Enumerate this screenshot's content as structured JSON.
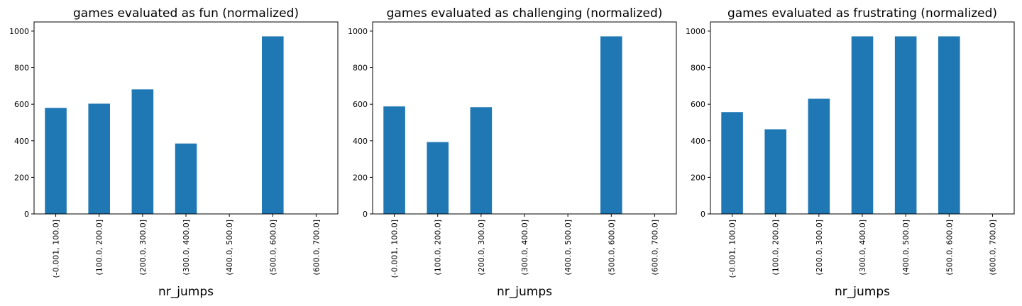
{
  "chart_data": [
    {
      "type": "bar",
      "title": "games evaluated as fun (normalized)",
      "xlabel": "nr_jumps",
      "ylabel": "",
      "categories": [
        "(-0.001, 100.0]",
        "(100.0, 200.0]",
        "(200.0, 300.0]",
        "(300.0, 400.0]",
        "(400.0, 500.0]",
        "(500.0, 600.0]",
        "(600.0, 700.0]"
      ],
      "values": [
        580,
        603,
        681,
        385,
        0,
        971,
        0
      ],
      "ylim": [
        0,
        1050
      ],
      "yticks": [
        0,
        200,
        400,
        600,
        800,
        1000
      ],
      "color": "#1f77b4",
      "grid": false
    },
    {
      "type": "bar",
      "title": "games evaluated as challenging (normalized)",
      "xlabel": "nr_jumps",
      "ylabel": "",
      "categories": [
        "(-0.001, 100.0]",
        "(100.0, 200.0]",
        "(200.0, 300.0]",
        "(300.0, 400.0]",
        "(400.0, 500.0]",
        "(500.0, 600.0]",
        "(600.0, 700.0]"
      ],
      "values": [
        588,
        393,
        584,
        0,
        0,
        971,
        0
      ],
      "ylim": [
        0,
        1050
      ],
      "yticks": [
        0,
        200,
        400,
        600,
        800,
        1000
      ],
      "color": "#1f77b4",
      "grid": false
    },
    {
      "type": "bar",
      "title": "games evaluated as frustrating (normalized)",
      "xlabel": "nr_jumps",
      "ylabel": "",
      "categories": [
        "(-0.001, 100.0]",
        "(100.0, 200.0]",
        "(200.0, 300.0]",
        "(300.0, 400.0]",
        "(400.0, 500.0]",
        "(500.0, 600.0]",
        "(600.0, 700.0]"
      ],
      "values": [
        557,
        463,
        630,
        971,
        971,
        971,
        0
      ],
      "ylim": [
        0,
        1050
      ],
      "yticks": [
        0,
        200,
        400,
        600,
        800,
        1000
      ],
      "color": "#1f77b4",
      "grid": false
    }
  ]
}
